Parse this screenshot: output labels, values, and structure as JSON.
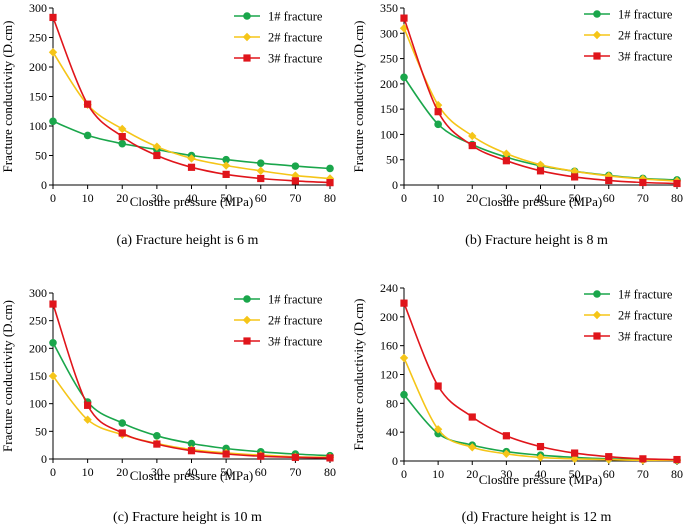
{
  "figure": {
    "colors": {
      "fracture_1": "#1aa64b",
      "fracture_2": "#f5c518",
      "fracture_3": "#e0151b",
      "axis": "#000000"
    }
  },
  "chart_data": [
    {
      "type": "line",
      "caption": "(a) Fracture height is 6 m",
      "xlabel": "Closure pressure (MPa)",
      "ylabel": "Fracture conductivity (D.cm)",
      "xlim": [
        0,
        80
      ],
      "ylim": [
        0,
        300
      ],
      "xticks": [
        0,
        10,
        20,
        30,
        40,
        50,
        60,
        70,
        80
      ],
      "yticks": [
        0,
        50,
        100,
        150,
        200,
        250,
        300
      ],
      "x": [
        0,
        10,
        20,
        30,
        40,
        50,
        60,
        70,
        80
      ],
      "legend_position": "top-right",
      "series": [
        {
          "name": "1# fracture",
          "marker": "circle",
          "values": [
            108,
            84,
            70,
            60,
            50,
            43,
            37,
            32,
            28
          ]
        },
        {
          "name": "2# fracture",
          "marker": "diamond",
          "values": [
            225,
            136,
            95,
            65,
            45,
            33,
            24,
            16,
            11
          ]
        },
        {
          "name": "3# fracture",
          "marker": "square",
          "values": [
            284,
            137,
            82,
            50,
            30,
            18,
            11,
            7,
            4
          ]
        }
      ]
    },
    {
      "type": "line",
      "caption": "(b) Fracture height is 8 m",
      "xlabel": "Closure pressure (MPa)",
      "ylabel": "Fracture conductivity (D.cm)",
      "xlim": [
        0,
        80
      ],
      "ylim": [
        0,
        350
      ],
      "xticks": [
        0,
        10,
        20,
        30,
        40,
        50,
        60,
        70,
        80
      ],
      "yticks": [
        0,
        50,
        100,
        150,
        200,
        250,
        300,
        350
      ],
      "x": [
        0,
        10,
        20,
        30,
        40,
        50,
        60,
        70,
        80
      ],
      "legend_position": "top-right",
      "series": [
        {
          "name": "1# fracture",
          "marker": "circle",
          "values": [
            213,
            120,
            80,
            55,
            38,
            27,
            19,
            13,
            10
          ]
        },
        {
          "name": "2# fracture",
          "marker": "diamond",
          "values": [
            310,
            158,
            97,
            62,
            40,
            27,
            18,
            12,
            8
          ]
        },
        {
          "name": "3# fracture",
          "marker": "square",
          "values": [
            330,
            145,
            78,
            48,
            28,
            16,
            9,
            5,
            3
          ]
        }
      ]
    },
    {
      "type": "line",
      "caption": "(c) Fracture height is 10 m",
      "xlabel": "Closure pressure (MPa)",
      "ylabel": "Fracture conductivity (D.cm)",
      "xlim": [
        0,
        80
      ],
      "ylim": [
        0,
        300
      ],
      "xticks": [
        0,
        10,
        20,
        30,
        40,
        50,
        60,
        70,
        80
      ],
      "yticks": [
        0,
        50,
        100,
        150,
        200,
        250,
        300
      ],
      "x": [
        0,
        10,
        20,
        30,
        40,
        50,
        60,
        70,
        80
      ],
      "legend_position": "top-right",
      "series": [
        {
          "name": "1# fracture",
          "marker": "circle",
          "values": [
            210,
            103,
            65,
            42,
            28,
            19,
            13,
            9,
            6
          ]
        },
        {
          "name": "2# fracture",
          "marker": "diamond",
          "values": [
            150,
            71,
            44,
            28,
            17,
            11,
            7,
            4,
            3
          ]
        },
        {
          "name": "3# fracture",
          "marker": "square",
          "values": [
            280,
            97,
            47,
            27,
            15,
            9,
            5,
            3,
            2
          ]
        }
      ]
    },
    {
      "type": "line",
      "caption": "(d) Fracture height is 12 m",
      "xlabel": "Closure pressure (MPa)",
      "ylabel": "Fracture conductivity (D.cm)",
      "xlim": [
        0,
        80
      ],
      "ylim": [
        0,
        240
      ],
      "xticks": [
        0,
        10,
        20,
        30,
        40,
        50,
        60,
        70,
        80
      ],
      "yticks": [
        0,
        40,
        80,
        120,
        160,
        200,
        240
      ],
      "x": [
        0,
        10,
        20,
        30,
        40,
        50,
        60,
        70,
        80
      ],
      "legend_position": "top-right",
      "series": [
        {
          "name": "1# fracture",
          "marker": "circle",
          "values": [
            92,
            38,
            22,
            13,
            8,
            5,
            3,
            2,
            1
          ]
        },
        {
          "name": "2# fracture",
          "marker": "diamond",
          "values": [
            143,
            44,
            19,
            10,
            5,
            3,
            2,
            1,
            1
          ]
        },
        {
          "name": "3# fracture",
          "marker": "square",
          "values": [
            219,
            104,
            61,
            35,
            20,
            11,
            6,
            3,
            2
          ]
        }
      ]
    }
  ]
}
